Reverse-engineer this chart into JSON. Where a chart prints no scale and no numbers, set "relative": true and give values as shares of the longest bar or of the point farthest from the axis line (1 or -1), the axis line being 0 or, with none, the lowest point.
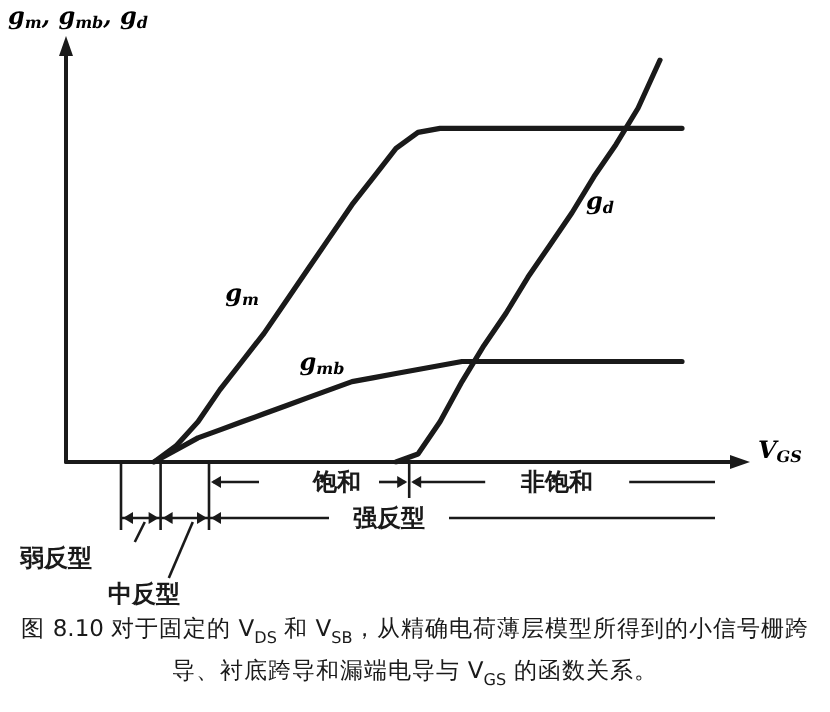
{
  "chart_data": {
    "type": "line",
    "relative": true,
    "title": "图 8.10 对于固定的 V$_{DS}$ 和 V$_{SB}$，从精确电荷薄层模型所得到的小信号栅跨导、衬底跨导和漏端电导与 V$_{GS}$ 的函数关系。",
    "xlabel": "V$_{GS}$",
    "ylabel": "g$_{m}$, g$_{mb}$, g$_{d}$",
    "annotations": [
      "饱和",
      "非饱和",
      "强反型",
      "弱反型",
      "中反型"
    ],
    "categories": [
      null,
      null,
      null,
      null,
      null,
      null,
      null,
      null,
      null,
      null,
      null,
      null,
      null,
      null,
      null,
      null,
      null,
      null,
      null,
      null,
      null,
      null,
      null,
      null,
      null,
      null,
      null,
      null,
      null,
      null,
      null
    ],
    "series": [
      {
        "name": "g$_{m}$",
        "color": "#1a1a1a",
        "values": [
          null,
          null,
          null,
          null,
          0,
          0.04,
          0.1,
          0.18,
          0.25,
          0.32,
          0.4,
          0.48,
          0.56,
          0.64,
          0.71,
          0.78,
          0.82,
          0.83,
          0.83,
          0.83,
          0.83,
          0.83,
          0.83,
          0.83,
          0.83,
          0.83,
          0.83,
          0.83,
          0.83,
          null,
          null
        ]
      },
      {
        "name": "g$_{mb}$",
        "color": "#1a1a1a",
        "values": [
          null,
          null,
          null,
          null,
          0,
          0.03,
          0.06,
          0.08,
          0.1,
          0.12,
          0.14,
          0.16,
          0.18,
          0.2,
          0.21,
          0.22,
          0.23,
          0.24,
          0.25,
          0.25,
          0.25,
          0.25,
          0.25,
          0.25,
          0.25,
          0.25,
          0.25,
          0.25,
          0.25,
          null,
          null
        ]
      },
      {
        "name": "g$_{d}$",
        "color": "#1a1a1a",
        "values": [
          null,
          null,
          null,
          null,
          null,
          null,
          null,
          null,
          null,
          null,
          null,
          null,
          null,
          null,
          null,
          0,
          0.02,
          0.1,
          0.2,
          0.29,
          0.37,
          0.46,
          0.54,
          0.62,
          0.71,
          0.79,
          0.88,
          1.0,
          null,
          null,
          null
        ]
      }
    ],
    "legend": false,
    "grid": false,
    "tick_labels": false,
    "marker": "none",
    "line_style": "solid"
  }
}
